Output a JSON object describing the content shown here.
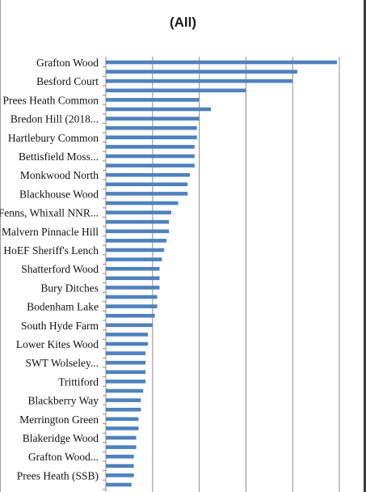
{
  "chart_data": {
    "type": "bar",
    "orientation": "horizontal",
    "title": "(All)",
    "xlabel": "",
    "ylabel": "",
    "xlim": [
      0,
      100
    ],
    "grid": true,
    "bar_color": "#4f81bd",
    "categories": [
      "Grafton Wood",
      "",
      "Besford Court",
      "",
      "Prees Heath Common",
      "",
      "Bredon Hill (2018...",
      "",
      "Hartlebury Common",
      "",
      "Bettisfield Moss...",
      "",
      "Monkwood North",
      "",
      "Blackhouse Wood",
      "",
      "Fenns, Whixall NNR...",
      "",
      "Malvern Pinnacle Hill",
      "",
      "HoEF Sheriff's Lench",
      "",
      "Shatterford Wood",
      "",
      "Bury Ditches",
      "",
      "Bodenham Lake",
      "",
      "South Hyde Farm",
      "",
      "Lower Kites Wood",
      "",
      "SWT Wolseley...",
      "",
      "Trittiford",
      "",
      "Blackberry Way",
      "",
      "Merrington Green",
      "",
      "Blakeridge Wood",
      "",
      "Grafton Wood...",
      "",
      "Prees Heath (SSB)",
      ""
    ],
    "values": [
      99,
      82,
      80,
      60,
      40,
      45,
      40,
      39,
      39,
      38,
      38,
      38,
      36,
      35,
      35,
      31,
      28,
      27,
      27,
      26,
      25,
      24,
      23,
      23,
      23,
      22,
      22,
      21,
      20,
      18,
      18,
      17,
      17,
      17,
      17,
      16,
      15,
      15,
      14,
      14,
      13,
      13,
      12,
      12,
      12,
      11
    ]
  }
}
